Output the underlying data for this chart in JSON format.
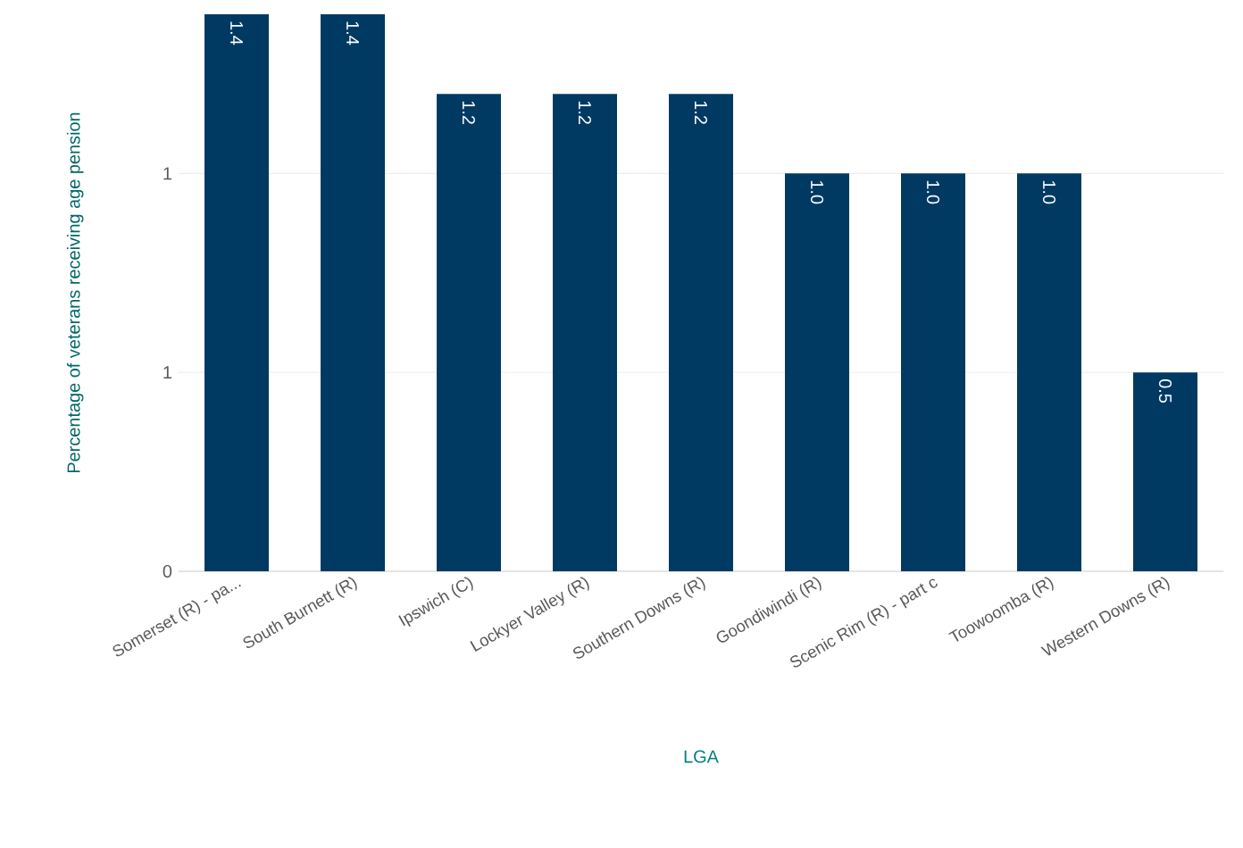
{
  "chart_data": {
    "type": "bar",
    "xlabel": "LGA",
    "ylabel": "Percentage of veterans receiving age pension",
    "categories": [
      "Somerset (R) - pa...",
      "South Burnett (R)",
      "Ipswich (C)",
      "Lockyer Valley (R)",
      "Southern Downs (R)",
      "Goondiwindi (R)",
      "Scenic Rim (R) - part c",
      "Toowoomba (R)",
      "Western Downs (R)"
    ],
    "values": [
      1.4,
      1.4,
      1.2,
      1.2,
      1.2,
      1.0,
      1.0,
      1.0,
      0.5
    ],
    "value_labels": [
      "1.4",
      "1.4",
      "1.2",
      "1.2",
      "1.2",
      "1.0",
      "1.0",
      "1.0",
      "0.5"
    ],
    "color": "#003a63",
    "ylim": [
      0,
      1.4
    ],
    "yticks": [
      0,
      {
        "value": 0.5,
        "label": "1"
      },
      {
        "value": 1,
        "label": "1"
      }
    ],
    "grid": "y"
  }
}
